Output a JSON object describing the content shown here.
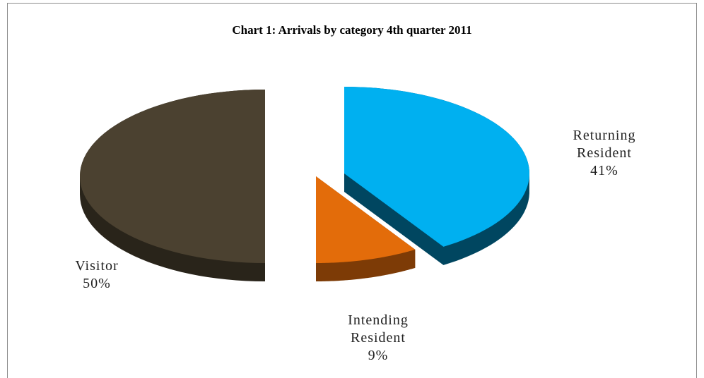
{
  "chart_data": {
    "type": "pie",
    "title": "Chart 1: Arrivals by category 4th quarter 2011",
    "categories": [
      "Returning Resident",
      "Intending Resident",
      "Visitor"
    ],
    "values": [
      41,
      9,
      50
    ],
    "value_labels": [
      "41%",
      "9%",
      "50%"
    ],
    "colors": [
      "#00b0f0",
      "#e36c0a",
      "#4b4130"
    ]
  }
}
